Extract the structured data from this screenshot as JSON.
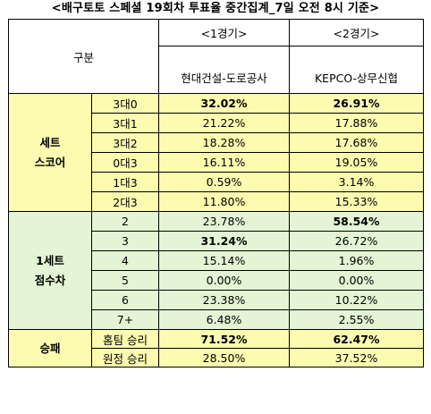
{
  "title": "<배구토토 스페셜 19회차 투표율 중간집계_7일 오전 8시 기준>",
  "header": {
    "group_label": "구분",
    "col1_round": "<1경기>",
    "col1_match": "현대건설-도로공사",
    "col2_round": "<2경기>",
    "col2_match": "KEPCO-상무신협"
  },
  "sections": [
    {
      "label_line1": "세트",
      "label_line2": "스코어",
      "rows": [
        {
          "option": "3대0",
          "v1": "32.02%",
          "v2": "26.91%",
          "b1": true,
          "b2": true
        },
        {
          "option": "3대1",
          "v1": "21.22%",
          "v2": "17.88%",
          "b1": false,
          "b2": false
        },
        {
          "option": "3대2",
          "v1": "18.28%",
          "v2": "17.68%",
          "b1": false,
          "b2": false
        },
        {
          "option": "0대3",
          "v1": "16.11%",
          "v2": "19.05%",
          "b1": false,
          "b2": false
        },
        {
          "option": "1대3",
          "v1": "0.59%",
          "v2": "3.14%",
          "b1": false,
          "b2": false
        },
        {
          "option": "2대3",
          "v1": "11.80%",
          "v2": "15.33%",
          "b1": false,
          "b2": false
        }
      ]
    },
    {
      "label_line1": "1세트",
      "label_line2": "점수차",
      "rows": [
        {
          "option": "2",
          "v1": "23.78%",
          "v2": "58.54%",
          "b1": false,
          "b2": true
        },
        {
          "option": "3",
          "v1": "31.24%",
          "v2": "26.72%",
          "b1": true,
          "b2": false
        },
        {
          "option": "4",
          "v1": "15.14%",
          "v2": "1.96%",
          "b1": false,
          "b2": false
        },
        {
          "option": "5",
          "v1": "0.00%",
          "v2": "0.00%",
          "b1": false,
          "b2": false
        },
        {
          "option": "6",
          "v1": "23.38%",
          "v2": "10.22%",
          "b1": false,
          "b2": false
        },
        {
          "option": "7+",
          "v1": "6.48%",
          "v2": "2.55%",
          "b1": false,
          "b2": false
        }
      ]
    },
    {
      "label_line1": "승패",
      "label_line2": "",
      "rows": [
        {
          "option": "홈팀 승리",
          "v1": "71.52%",
          "v2": "62.47%",
          "b1": true,
          "b2": true
        },
        {
          "option": "원정 승리",
          "v1": "28.50%",
          "v2": "37.52%",
          "b1": false,
          "b2": false
        }
      ]
    }
  ],
  "colors": {
    "yellow": "#fdfbb0",
    "green": "#e3f5d4",
    "white": "#ffffff"
  }
}
